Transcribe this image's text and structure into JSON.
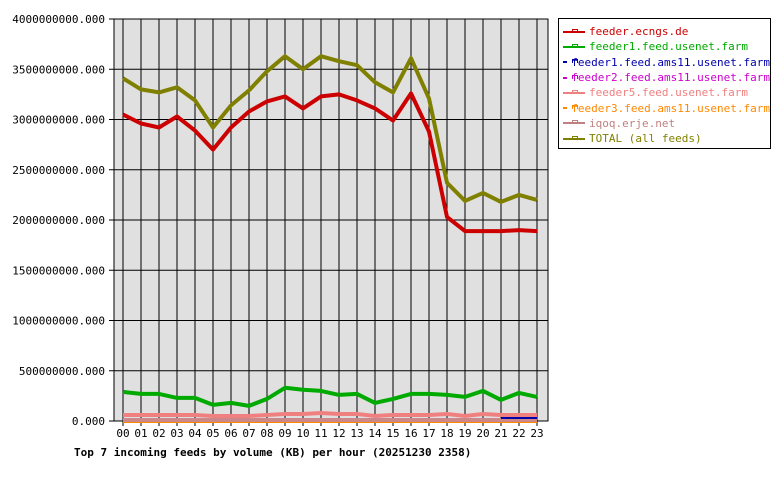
{
  "chart_data": {
    "type": "line",
    "title": "Top 7 incoming feeds by volume (KB) per hour (20251230 2358)",
    "xlabel": "",
    "ylabel": "",
    "ylim": [
      0,
      4000000000
    ],
    "yticks": [
      "0.000",
      "500000000.000",
      "1000000000.000",
      "1500000000.000",
      "2000000000.000",
      "2500000000.000",
      "3000000000.000",
      "3500000000.000",
      "4000000000.000"
    ],
    "categories": [
      "00",
      "01",
      "02",
      "03",
      "04",
      "05",
      "06",
      "07",
      "08",
      "09",
      "10",
      "11",
      "12",
      "13",
      "14",
      "15",
      "16",
      "17",
      "18",
      "19",
      "20",
      "21",
      "22",
      "23"
    ],
    "grid": true,
    "legend_position": "right",
    "series": [
      {
        "name": "feeder.ecngs.de",
        "color": "#cc0000",
        "values": [
          3050000000,
          2960000000,
          2920000000,
          3030000000,
          2890000000,
          2700000000,
          2920000000,
          3080000000,
          3180000000,
          3230000000,
          3110000000,
          3230000000,
          3250000000,
          3190000000,
          3110000000,
          2990000000,
          3260000000,
          2880000000,
          2030000000,
          1890000000,
          1890000000,
          1890000000,
          1900000000,
          1890000000
        ]
      },
      {
        "name": "feeder1.feed.usenet.farm",
        "color": "#00aa00",
        "values": [
          290000000,
          270000000,
          270000000,
          230000000,
          230000000,
          160000000,
          180000000,
          150000000,
          220000000,
          330000000,
          310000000,
          300000000,
          260000000,
          270000000,
          180000000,
          220000000,
          270000000,
          270000000,
          260000000,
          240000000,
          300000000,
          210000000,
          280000000,
          240000000
        ]
      },
      {
        "name": "feeder1.feed.ams11.usenet.farm",
        "color": "#0000aa",
        "values": [
          null,
          null,
          null,
          null,
          null,
          null,
          null,
          null,
          null,
          null,
          null,
          null,
          null,
          null,
          null,
          null,
          null,
          null,
          null,
          null,
          null,
          30000000,
          30000000,
          30000000
        ]
      },
      {
        "name": "feeder2.feed.ams11.usenet.farm",
        "color": "#cc00cc",
        "values": [
          0,
          0,
          0,
          0,
          0,
          0,
          0,
          0,
          0,
          0,
          0,
          0,
          0,
          0,
          0,
          0,
          0,
          0,
          0,
          0,
          0,
          0,
          0,
          0
        ]
      },
      {
        "name": "feeder5.feed.usenet.farm",
        "color": "#f08080",
        "values": [
          60000000,
          60000000,
          60000000,
          60000000,
          60000000,
          50000000,
          50000000,
          50000000,
          60000000,
          70000000,
          70000000,
          80000000,
          70000000,
          70000000,
          50000000,
          60000000,
          60000000,
          60000000,
          70000000,
          50000000,
          70000000,
          60000000,
          60000000,
          60000000
        ]
      },
      {
        "name": "feeder3.feed.ams11.usenet.farm",
        "color": "#ff8800",
        "values": [
          0,
          0,
          0,
          0,
          0,
          0,
          0,
          0,
          0,
          0,
          0,
          0,
          0,
          0,
          0,
          0,
          0,
          0,
          0,
          0,
          0,
          0,
          0,
          0
        ]
      },
      {
        "name": "iqoq.erje.net",
        "color": "#cc8888",
        "values": [
          10000000,
          10000000,
          10000000,
          10000000,
          10000000,
          10000000,
          10000000,
          10000000,
          10000000,
          10000000,
          10000000,
          10000000,
          10000000,
          10000000,
          10000000,
          10000000,
          10000000,
          10000000,
          10000000,
          10000000,
          10000000,
          10000000,
          10000000,
          10000000
        ]
      },
      {
        "name": "TOTAL (all feeds)",
        "color": "#808000",
        "values": [
          3410000000,
          3300000000,
          3270000000,
          3320000000,
          3190000000,
          2920000000,
          3140000000,
          3290000000,
          3480000000,
          3630000000,
          3500000000,
          3630000000,
          3580000000,
          3540000000,
          3370000000,
          3270000000,
          3610000000,
          3210000000,
          2370000000,
          2190000000,
          2270000000,
          2180000000,
          2250000000,
          2200000000
        ]
      }
    ]
  },
  "legend": {
    "items": [
      {
        "label": "feeder.ecngs.de",
        "color": "#cc0000"
      },
      {
        "label": "feeder1.feed.usenet.farm",
        "color": "#00aa00"
      },
      {
        "label": "feeder1.feed.ams11.usenet.farm",
        "color": "#0000aa"
      },
      {
        "label": "feeder2.feed.ams11.usenet.farm",
        "color": "#cc00cc"
      },
      {
        "label": "feeder5.feed.usenet.farm",
        "color": "#f08080"
      },
      {
        "label": "feeder3.feed.ams11.usenet.farm",
        "color": "#ff8800"
      },
      {
        "label": "iqoq.erje.net",
        "color": "#c08080"
      },
      {
        "label": "TOTAL (all feeds)",
        "color": "#808000"
      }
    ]
  },
  "colors": {
    "plot_background": "#e0e0e0",
    "grid": "#000000"
  }
}
